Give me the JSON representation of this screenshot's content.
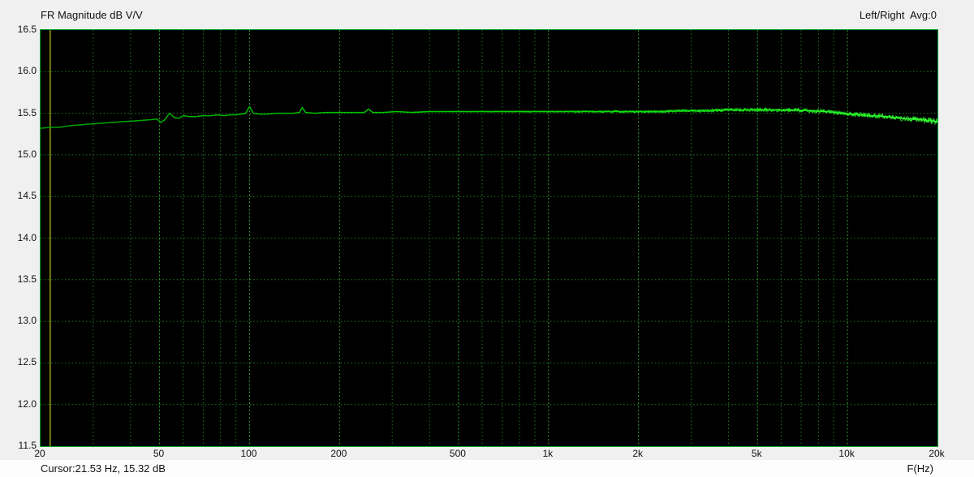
{
  "chart_data": {
    "type": "line",
    "title": "FR Magnitude dB V/V",
    "legend": "Left/Right  Avg:0",
    "xlabel": "F(Hz)",
    "x_scale": "log",
    "xlim": [
      20,
      20000
    ],
    "ylim": [
      11.5,
      16.5
    ],
    "grid": true,
    "y_ticks": [
      "16.5",
      "16.0",
      "15.5",
      "15.0",
      "14.5",
      "14.0",
      "13.5",
      "13.0",
      "12.5",
      "12.0",
      "11.5"
    ],
    "y_tick_values": [
      16.5,
      16.0,
      15.5,
      15.0,
      14.5,
      14.0,
      13.5,
      13.0,
      12.5,
      12.0,
      11.5
    ],
    "x_major_ticks": [
      {
        "f": 20,
        "label": "20"
      },
      {
        "f": 50,
        "label": "50"
      },
      {
        "f": 100,
        "label": "100"
      },
      {
        "f": 200,
        "label": "200"
      },
      {
        "f": 500,
        "label": "500"
      },
      {
        "f": 1000,
        "label": "1k"
      },
      {
        "f": 2000,
        "label": "2k"
      },
      {
        "f": 5000,
        "label": "5k"
      },
      {
        "f": 10000,
        "label": "10k"
      },
      {
        "f": 20000,
        "label": "20k"
      }
    ],
    "x_minor_ticks": [
      30,
      40,
      60,
      70,
      80,
      90,
      300,
      400,
      600,
      700,
      800,
      900,
      3000,
      4000,
      6000,
      7000,
      8000,
      9000
    ],
    "cursor": {
      "freq_hz": 21.53,
      "db": 15.32,
      "label": "Cursor:21.53 Hz, 15.32 dB"
    },
    "series": [
      {
        "name": "Left/Right Avg",
        "points": [
          [
            20,
            15.32
          ],
          [
            21.5,
            15.33
          ],
          [
            23,
            15.33
          ],
          [
            25,
            15.35
          ],
          [
            27,
            15.36
          ],
          [
            29,
            15.37
          ],
          [
            32,
            15.38
          ],
          [
            35,
            15.39
          ],
          [
            38,
            15.4
          ],
          [
            42,
            15.41
          ],
          [
            46,
            15.42
          ],
          [
            49,
            15.43
          ],
          [
            50.5,
            15.39
          ],
          [
            52,
            15.42
          ],
          [
            54,
            15.5
          ],
          [
            56,
            15.45
          ],
          [
            58,
            15.44
          ],
          [
            60,
            15.47
          ],
          [
            63,
            15.46
          ],
          [
            66,
            15.46
          ],
          [
            70,
            15.47
          ],
          [
            74,
            15.47
          ],
          [
            78,
            15.48
          ],
          [
            82,
            15.47
          ],
          [
            86,
            15.48
          ],
          [
            90,
            15.48
          ],
          [
            94,
            15.49
          ],
          [
            97,
            15.5
          ],
          [
            100,
            15.58
          ],
          [
            103,
            15.5
          ],
          [
            108,
            15.49
          ],
          [
            115,
            15.49
          ],
          [
            122,
            15.5
          ],
          [
            130,
            15.5
          ],
          [
            140,
            15.5
          ],
          [
            147,
            15.51
          ],
          [
            150,
            15.57
          ],
          [
            154,
            15.51
          ],
          [
            165,
            15.5
          ],
          [
            180,
            15.51
          ],
          [
            200,
            15.51
          ],
          [
            220,
            15.51
          ],
          [
            242,
            15.51
          ],
          [
            250,
            15.55
          ],
          [
            258,
            15.51
          ],
          [
            280,
            15.51
          ],
          [
            310,
            15.52
          ],
          [
            350,
            15.51
          ],
          [
            400,
            15.52
          ],
          [
            450,
            15.52
          ],
          [
            500,
            15.52
          ],
          [
            600,
            15.52
          ],
          [
            700,
            15.52
          ],
          [
            800,
            15.52
          ],
          [
            900,
            15.52
          ],
          [
            1000,
            15.52
          ],
          [
            1200,
            15.52
          ],
          [
            1400,
            15.52
          ],
          [
            1700,
            15.52
          ],
          [
            2000,
            15.52
          ],
          [
            2400,
            15.52
          ],
          [
            2800,
            15.53
          ],
          [
            3300,
            15.53
          ],
          [
            4000,
            15.54
          ],
          [
            4700,
            15.54
          ],
          [
            5500,
            15.54
          ],
          [
            6500,
            15.54
          ],
          [
            7500,
            15.53
          ],
          [
            8500,
            15.52
          ],
          [
            9500,
            15.5
          ],
          [
            10500,
            15.49
          ],
          [
            12000,
            15.47
          ],
          [
            13500,
            15.46
          ],
          [
            15000,
            15.44
          ],
          [
            16500,
            15.43
          ],
          [
            18000,
            15.42
          ],
          [
            19000,
            15.41
          ],
          [
            20000,
            15.4
          ]
        ]
      }
    ],
    "noise": {
      "start_hz": 350,
      "max_amplitude_db": 0.025
    },
    "colors": {
      "page_bg": "#f0f0f0",
      "status_bg": "#fdfdfd",
      "plot_bg": "#000000",
      "plot_border": "#00a22a",
      "grid_minor": "#1f7a1f",
      "grid_major": "#2f9e2f",
      "trace_low": "#00a000",
      "trace_mid": "#00c800",
      "trace_high": "#33ff33",
      "cursor_line": "#a0a012",
      "text": "#111111"
    }
  }
}
